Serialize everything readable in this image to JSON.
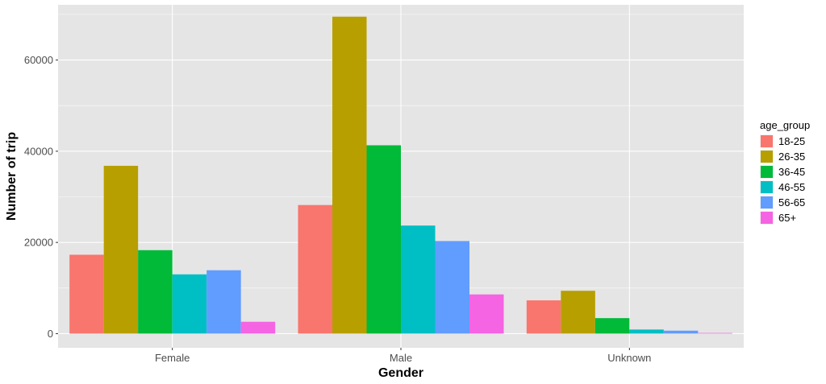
{
  "chart_data": {
    "type": "bar",
    "title": "",
    "xlabel": "Gender",
    "ylabel": "Number of trip",
    "categories": [
      "Female",
      "Male",
      "Unknown"
    ],
    "ylim": [
      -3100,
      72100
    ],
    "yticks": [
      0,
      20000,
      40000,
      60000
    ],
    "ytick_labels": [
      "0",
      "20000",
      "40000",
      "60000"
    ],
    "grid": true,
    "legend": {
      "title": "age_group",
      "position": "right"
    },
    "series": [
      {
        "name": "18-25",
        "color": "#F8766D",
        "values": [
          17300,
          28200,
          7300
        ]
      },
      {
        "name": "26-35",
        "color": "#B79F00",
        "values": [
          36800,
          69500,
          9400
        ]
      },
      {
        "name": "36-45",
        "color": "#00BA38",
        "values": [
          18300,
          41300,
          3400
        ]
      },
      {
        "name": "46-55",
        "color": "#00BFC4",
        "values": [
          13000,
          23700,
          900
        ]
      },
      {
        "name": "56-65",
        "color": "#619CFF",
        "values": [
          13900,
          20300,
          650
        ]
      },
      {
        "name": "65+",
        "color": "#F564E3",
        "values": [
          2600,
          8600,
          150
        ]
      }
    ]
  },
  "colors": {
    "panel_background": "#E5E5E5",
    "gridline_major": "#FFFFFF"
  }
}
